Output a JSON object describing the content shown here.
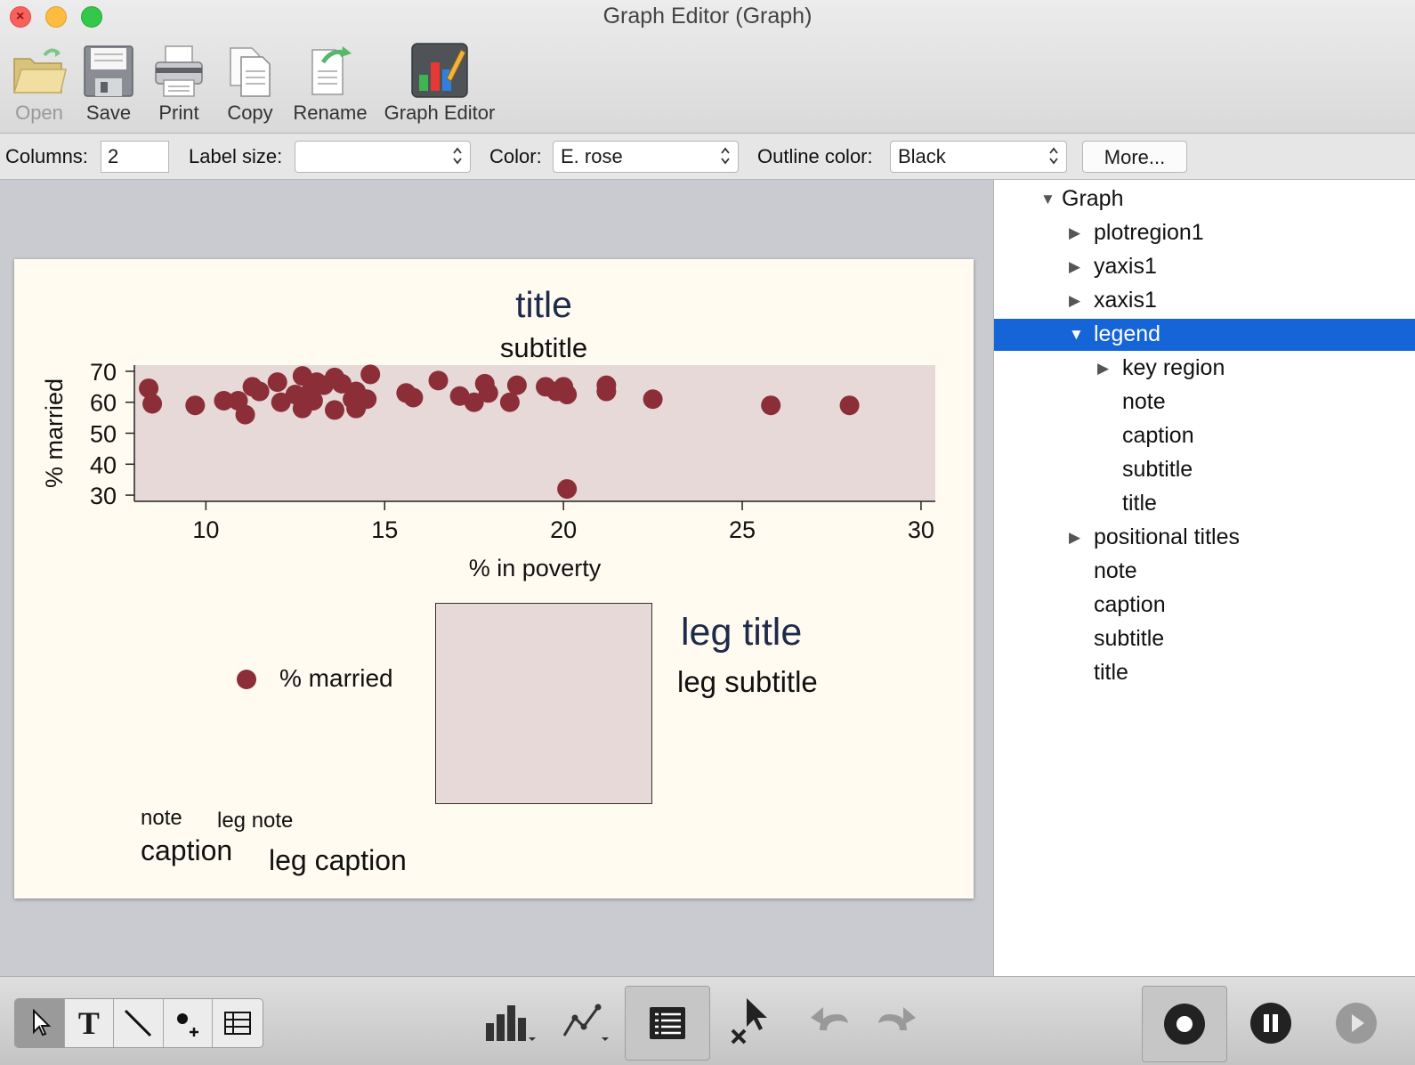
{
  "window": {
    "title": "Graph Editor (Graph)"
  },
  "toolbar": {
    "open": "Open",
    "save": "Save",
    "print": "Print",
    "copy": "Copy",
    "rename": "Rename",
    "graph_editor": "Graph Editor"
  },
  "properties": {
    "columns_label": "Columns:",
    "columns_value": "2",
    "label_size_label": "Label size:",
    "label_size_value": "",
    "color_label": "Color:",
    "color_value": "E. rose",
    "outline_label": "Outline color:",
    "outline_value": "Black",
    "more_button": "More..."
  },
  "graph": {
    "title": "title",
    "subtitle": "subtitle",
    "legend_label": "% married",
    "leg_title": "leg title",
    "leg_subtitle": "leg subtitle",
    "note": "note",
    "leg_note": "leg note",
    "caption": "caption",
    "leg_caption": "leg caption",
    "colors": {
      "background": "#fffbf0",
      "plotregion": "#e6d9d7",
      "marker": "#8b2e38",
      "title": "#1e2a4a"
    }
  },
  "chart_data": {
    "type": "scatter",
    "xlabel": "% in poverty",
    "ylabel": "% married",
    "xlim": [
      8,
      30.4
    ],
    "ylim": [
      28,
      72
    ],
    "xticks": [
      10,
      15,
      20,
      25,
      30
    ],
    "yticks": [
      30,
      40,
      50,
      60,
      70
    ],
    "grid": false,
    "legend_position": "bottom",
    "series": [
      {
        "name": "% married",
        "color": "#8b2e38",
        "points": [
          [
            8.4,
            64.5
          ],
          [
            8.5,
            59.5
          ],
          [
            9.7,
            59
          ],
          [
            10.5,
            60.5
          ],
          [
            10.9,
            60.5
          ],
          [
            11.1,
            56
          ],
          [
            11.3,
            65
          ],
          [
            11.5,
            63.5
          ],
          [
            12.0,
            66.5
          ],
          [
            12.1,
            60
          ],
          [
            12.5,
            62.5
          ],
          [
            12.7,
            58
          ],
          [
            12.7,
            68.5
          ],
          [
            12.9,
            63
          ],
          [
            13.0,
            60.5
          ],
          [
            13.1,
            66.5
          ],
          [
            13.3,
            65.5
          ],
          [
            13.6,
            57.5
          ],
          [
            13.6,
            68
          ],
          [
            13.8,
            66
          ],
          [
            14.1,
            61
          ],
          [
            14.2,
            58
          ],
          [
            14.2,
            63.5
          ],
          [
            14.5,
            61
          ],
          [
            14.6,
            69
          ],
          [
            15.6,
            63
          ],
          [
            15.8,
            61.5
          ],
          [
            16.5,
            67
          ],
          [
            17.1,
            62
          ],
          [
            17.5,
            60
          ],
          [
            17.8,
            66
          ],
          [
            17.9,
            63
          ],
          [
            18.5,
            60
          ],
          [
            18.7,
            65.5
          ],
          [
            19.5,
            65
          ],
          [
            19.8,
            63.5
          ],
          [
            20.0,
            65
          ],
          [
            20.1,
            62.5
          ],
          [
            20.1,
            32
          ],
          [
            21.2,
            65.5
          ],
          [
            21.2,
            63.5
          ],
          [
            22.5,
            61
          ],
          [
            25.8,
            59
          ],
          [
            28.0,
            59
          ]
        ]
      }
    ]
  },
  "tree": {
    "items": [
      {
        "label": "Graph",
        "state": "expanded",
        "level": 0
      },
      {
        "label": "plotregion1",
        "state": "collapsed",
        "level": 1
      },
      {
        "label": "yaxis1",
        "state": "collapsed",
        "level": 1
      },
      {
        "label": "xaxis1",
        "state": "collapsed",
        "level": 1
      },
      {
        "label": "legend",
        "state": "expanded",
        "level": 1,
        "selected": true
      },
      {
        "label": "key region",
        "state": "collapsed",
        "level": 2
      },
      {
        "label": "note",
        "state": "leaf",
        "level": 2
      },
      {
        "label": "caption",
        "state": "leaf",
        "level": 2
      },
      {
        "label": "subtitle",
        "state": "leaf",
        "level": 2
      },
      {
        "label": "title",
        "state": "leaf",
        "level": 2
      },
      {
        "label": "positional titles",
        "state": "collapsed",
        "level": 1
      },
      {
        "label": "note",
        "state": "leaf",
        "level": 1
      },
      {
        "label": "caption",
        "state": "leaf",
        "level": 1
      },
      {
        "label": "subtitle",
        "state": "leaf",
        "level": 1
      },
      {
        "label": "title",
        "state": "leaf",
        "level": 1
      }
    ]
  },
  "bottom_tools": {
    "selected_tool": "pointer",
    "icons": [
      "pointer-icon",
      "text-icon",
      "line-icon",
      "marker-icon",
      "grid-icon",
      "bar-chart-icon",
      "line-chart-icon",
      "browser-list-icon",
      "grid-edit-icon",
      "undo-icon",
      "redo-icon",
      "record-icon",
      "pause-icon",
      "play-icon"
    ]
  }
}
